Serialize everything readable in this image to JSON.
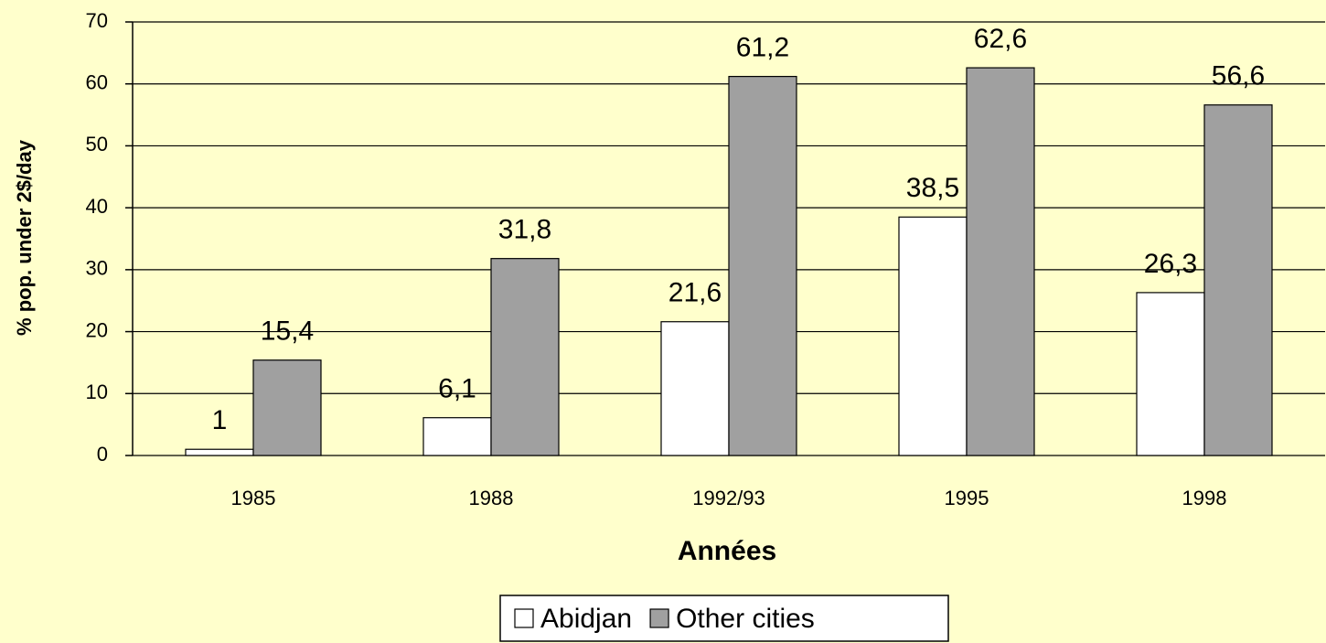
{
  "chart_data": {
    "type": "bar",
    "categories": [
      "1985",
      "1988",
      "1992/93",
      "1995",
      "1998"
    ],
    "series": [
      {
        "name": "Abidjan",
        "color": "#ffffff",
        "values": [
          1,
          6.1,
          21.6,
          38.5,
          26.3
        ],
        "value_labels": [
          "1",
          "6,1",
          "21,6",
          "38,5",
          "26,3"
        ]
      },
      {
        "name": "Other cities",
        "color": "#a0a0a0",
        "values": [
          15.4,
          31.8,
          61.2,
          62.6,
          56.6
        ],
        "value_labels": [
          "15,4",
          "31,8",
          "61,2",
          "62,6",
          "56,6"
        ]
      }
    ],
    "ylabel": "% pop. under 2$/day",
    "xlabel": "Années",
    "ylim": [
      0,
      70
    ],
    "yticks": [
      0,
      10,
      20,
      30,
      40,
      50,
      60,
      70
    ],
    "grid": true,
    "legend": "bottom"
  }
}
